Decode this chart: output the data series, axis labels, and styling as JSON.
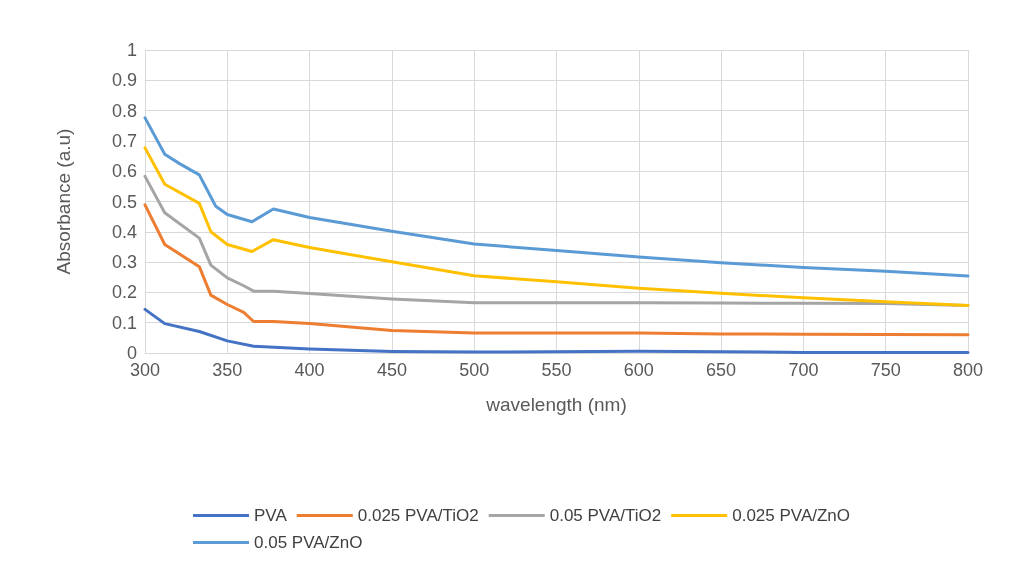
{
  "chart_data": {
    "type": "line",
    "xlabel": "wavelength (nm)",
    "ylabel": "Absorbance (a.u)",
    "xlim": [
      300,
      800
    ],
    "xticks": [
      300,
      350,
      400,
      450,
      500,
      550,
      600,
      650,
      700,
      750,
      800
    ],
    "ylim": [
      0,
      1
    ],
    "yticks": [
      0,
      0.1,
      0.2,
      0.3,
      0.4,
      0.5,
      0.6,
      0.7,
      0.8,
      0.9,
      1
    ],
    "grid": true,
    "legend": "bottom",
    "marker": "none",
    "line_style": "solid",
    "series": [
      {
        "name": "PVA",
        "color": "#4472c4",
        "x": [
          300,
          312,
          333,
          350,
          366,
          400,
          450,
          500,
          600,
          700,
          800
        ],
        "values": [
          0.144,
          0.097,
          0.071,
          0.04,
          0.022,
          0.013,
          0.005,
          0.003,
          0.006,
          0.002,
          0.002
        ]
      },
      {
        "name": "0.025 PVA/TiO2",
        "color": "#ed7d31",
        "x": [
          300,
          312,
          333,
          340,
          350,
          360,
          366,
          378,
          400,
          450,
          500,
          550,
          600,
          650,
          700,
          800
        ],
        "values": [
          0.489,
          0.358,
          0.285,
          0.191,
          0.16,
          0.134,
          0.104,
          0.104,
          0.097,
          0.074,
          0.066,
          0.066,
          0.066,
          0.063,
          0.062,
          0.06
        ]
      },
      {
        "name": "0.05 PVA/TiO2",
        "color": "#a5a5a5",
        "x": [
          300,
          312,
          333,
          340,
          350,
          360,
          366,
          378,
          400,
          450,
          500,
          550,
          600,
          650,
          700,
          750,
          800
        ],
        "values": [
          0.583,
          0.463,
          0.379,
          0.29,
          0.248,
          0.222,
          0.204,
          0.204,
          0.196,
          0.178,
          0.166,
          0.166,
          0.166,
          0.165,
          0.164,
          0.163,
          0.157
        ]
      },
      {
        "name": "0.025 PVA/ZnO",
        "color": "#ffc000",
        "x": [
          300,
          312,
          333,
          340,
          350,
          365,
          378,
          400,
          450,
          500,
          550,
          600,
          650,
          700,
          750,
          800
        ],
        "values": [
          0.677,
          0.557,
          0.494,
          0.4,
          0.358,
          0.335,
          0.374,
          0.348,
          0.301,
          0.255,
          0.235,
          0.214,
          0.197,
          0.182,
          0.169,
          0.157
        ]
      },
      {
        "name": "0.05 PVA/ZnO",
        "color": "#5b9bd5",
        "x": [
          300,
          312,
          321,
          333,
          337,
          343,
          350,
          365,
          378,
          400,
          450,
          500,
          550,
          600,
          650,
          700,
          750,
          800
        ],
        "values": [
          0.776,
          0.656,
          0.625,
          0.588,
          0.546,
          0.484,
          0.457,
          0.433,
          0.475,
          0.447,
          0.402,
          0.36,
          0.338,
          0.317,
          0.298,
          0.282,
          0.27,
          0.254
        ]
      }
    ]
  }
}
